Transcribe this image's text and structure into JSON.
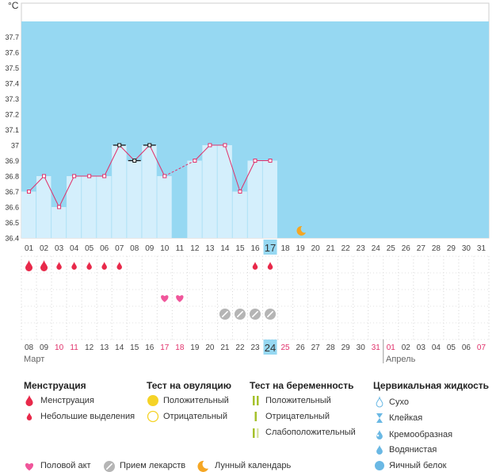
{
  "unit": "°C",
  "y_ticks": [
    "37.7",
    "37.6",
    "37.5",
    "37.4",
    "37.3",
    "37.2",
    "37.1",
    "37",
    "36.9",
    "36.8",
    "36.7",
    "36.6",
    "36.5",
    "36.4"
  ],
  "cycle_days": [
    "01",
    "02",
    "03",
    "04",
    "05",
    "06",
    "07",
    "08",
    "09",
    "10",
    "11",
    "12",
    "13",
    "14",
    "15",
    "16",
    "17",
    "18",
    "19",
    "20",
    "21",
    "22",
    "23",
    "24",
    "25",
    "26",
    "27",
    "28",
    "29",
    "30",
    "31"
  ],
  "today_cycle_day": "17",
  "dates": [
    {
      "text": "08",
      "red": false
    },
    {
      "text": "09",
      "red": false
    },
    {
      "text": "10",
      "red": true
    },
    {
      "text": "11",
      "red": true
    },
    {
      "text": "12",
      "red": false
    },
    {
      "text": "13",
      "red": false
    },
    {
      "text": "14",
      "red": false
    },
    {
      "text": "15",
      "red": false
    },
    {
      "text": "16",
      "red": false
    },
    {
      "text": "17",
      "red": true
    },
    {
      "text": "18",
      "red": true
    },
    {
      "text": "19",
      "red": false
    },
    {
      "text": "20",
      "red": false
    },
    {
      "text": "21",
      "red": false
    },
    {
      "text": "22",
      "red": false
    },
    {
      "text": "23",
      "red": false
    },
    {
      "text": "24",
      "red": false
    },
    {
      "text": "25",
      "red": true
    },
    {
      "text": "26",
      "red": false
    },
    {
      "text": "27",
      "red": false
    },
    {
      "text": "28",
      "red": false
    },
    {
      "text": "29",
      "red": false
    },
    {
      "text": "30",
      "red": false
    },
    {
      "text": "31",
      "red": true
    },
    {
      "text": "01",
      "red": true
    },
    {
      "text": "02",
      "red": false
    },
    {
      "text": "03",
      "red": false
    },
    {
      "text": "04",
      "red": false
    },
    {
      "text": "05",
      "red": false
    },
    {
      "text": "06",
      "red": false
    },
    {
      "text": "07",
      "red": true
    }
  ],
  "today_date": "24",
  "months": {
    "first": "Март",
    "second": "Апрель"
  },
  "chart_data": {
    "type": "line",
    "ylim": [
      36.4,
      37.8
    ],
    "ylabel": "°C",
    "x": [
      1,
      2,
      3,
      4,
      5,
      6,
      7,
      8,
      9,
      10,
      12,
      13,
      14,
      15,
      16,
      17
    ],
    "values": [
      36.7,
      36.8,
      36.6,
      36.8,
      36.8,
      36.8,
      37.0,
      36.9,
      37.0,
      36.8,
      36.9,
      37.0,
      37.0,
      36.7,
      36.9,
      36.9
    ],
    "marker_style": [
      "pink",
      "pink",
      "pink",
      "pink",
      "pink",
      "pink",
      "black",
      "black",
      "black",
      "pink",
      "pink",
      "pink",
      "pink",
      "pink",
      "pink",
      "pink"
    ],
    "dashed_gap": [
      10,
      12
    ],
    "moon_day": 19,
    "menstruation": [
      {
        "day": 1,
        "kind": "heavy"
      },
      {
        "day": 2,
        "kind": "heavy"
      },
      {
        "day": 3,
        "kind": "light"
      },
      {
        "day": 4,
        "kind": "light"
      },
      {
        "day": 5,
        "kind": "light"
      },
      {
        "day": 6,
        "kind": "light"
      },
      {
        "day": 7,
        "kind": "light"
      },
      {
        "day": 16,
        "kind": "light"
      },
      {
        "day": 17,
        "kind": "light"
      }
    ],
    "intercourse_days": [
      10,
      11
    ],
    "medication_days": [
      14,
      15,
      16,
      17
    ]
  },
  "legend": {
    "menstruation": {
      "title": "Менструация",
      "items": [
        "Менструация",
        "Небольшие выделения"
      ]
    },
    "ovulation": {
      "title": "Тест на овуляцию",
      "items": [
        "Положительный",
        "Отрицательный"
      ]
    },
    "pregnancy": {
      "title": "Тест на беременность",
      "items": [
        "Положительный",
        "Отрицательный",
        "Слабоположительный"
      ]
    },
    "cervical": {
      "title": "Цервикальная жидкость",
      "items": [
        "Сухо",
        "Клейкая",
        "Кремообразная",
        "Водянистая",
        "Яичный белок"
      ]
    },
    "bottom": [
      "Половой акт",
      "Прием лекарств",
      "Лунный календарь"
    ]
  },
  "colors": {
    "sky": "#96d8f2",
    "bar": "#d4effc",
    "line": "#e0306a",
    "red": "#e8294a",
    "heart": "#f0569b",
    "moon": "#f5a623",
    "today": "#96d8f2",
    "ovulation_yellow": "#f5d327",
    "pregnancy_green": "#a5c12b",
    "cervical_blue": "#6ab8e4"
  }
}
